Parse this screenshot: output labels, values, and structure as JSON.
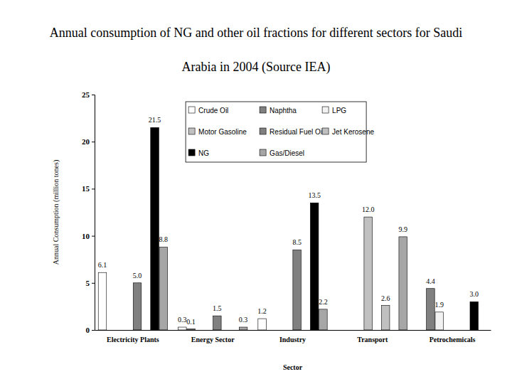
{
  "chart_data": {
    "type": "bar",
    "title": "Annual consumption of NG and other oil fractions for different sectors for Saudi Arabia in 2004 (Source IEA)",
    "xlabel": "Sector",
    "ylabel": "Annual Consumption (million tones)",
    "categories": [
      "Electricity Plants",
      "Energy Sector",
      "Industry",
      "Transport",
      "Petrochemicals"
    ],
    "series": [
      {
        "name": "Crude Oil",
        "color": "#ffffff",
        "values": [
          6.1,
          0.3,
          1.2,
          null,
          null
        ],
        "value_labels": [
          "6.1",
          "0.3",
          "1.2",
          null,
          null
        ]
      },
      {
        "name": "Naphtha",
        "color": "#808080",
        "values": [
          null,
          0.1,
          null,
          null,
          4.4
        ],
        "value_labels": [
          null,
          "0.1",
          null,
          null,
          "4.4"
        ]
      },
      {
        "name": "LPG",
        "color": "#f2f2f2",
        "values": [
          null,
          null,
          null,
          null,
          1.9
        ],
        "value_labels": [
          null,
          null,
          null,
          null,
          "1.9"
        ]
      },
      {
        "name": "Motor Gasoline",
        "color": "#c0c0c0",
        "values": [
          null,
          null,
          null,
          12.0,
          null
        ],
        "value_labels": [
          null,
          null,
          null,
          "12.0",
          null
        ]
      },
      {
        "name": "Residual Fuel Oil",
        "color": "#808080",
        "values": [
          5.0,
          1.5,
          8.5,
          null,
          null
        ],
        "value_labels": [
          "5.0",
          "1.5",
          "8.5",
          null,
          null
        ]
      },
      {
        "name": "Jet Kerosene",
        "color": "#c0c0c0",
        "values": [
          null,
          null,
          null,
          2.6,
          null
        ],
        "value_labels": [
          null,
          null,
          null,
          "2.6",
          null
        ]
      },
      {
        "name": "NG",
        "color": "#000000",
        "values": [
          21.5,
          null,
          13.5,
          null,
          3.0
        ],
        "value_labels": [
          "21.5",
          null,
          "13.5",
          null,
          "3.0"
        ]
      },
      {
        "name": "Gas/Diesel",
        "color": "#a6a6a6",
        "values": [
          8.8,
          0.3,
          2.2,
          9.9,
          null
        ],
        "value_labels": [
          "8.8",
          "0.3",
          "2.2",
          "9.9",
          null
        ]
      }
    ],
    "ylim": [
      0,
      25
    ],
    "yticks": [
      0,
      5,
      10,
      15,
      20,
      25
    ],
    "grid": false,
    "legend": "top",
    "data_labels": true
  }
}
